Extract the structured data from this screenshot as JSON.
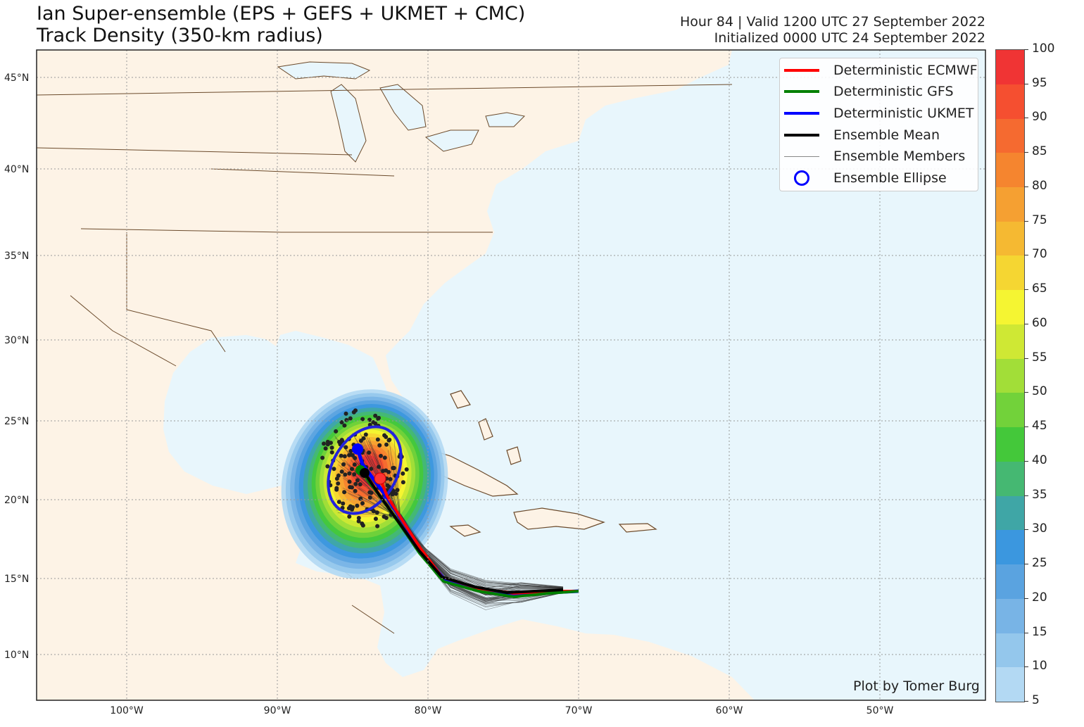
{
  "title": {
    "line1": "Ian Super-ensemble (EPS + GEFS + UKMET + CMC)",
    "line2": "Track Density (350-km radius)"
  },
  "header_right": {
    "line1": "Hour 84 | Valid 1200 UTC 27 September 2022",
    "line2": "Initialized 0000 UTC 24 September 2022"
  },
  "lat_labels": [
    "45°N",
    "40°N",
    "35°N",
    "30°N",
    "25°N",
    "20°N",
    "15°N",
    "10°N"
  ],
  "lon_labels": [
    "100°W",
    "90°W",
    "80°W",
    "70°W",
    "60°W",
    "50°W"
  ],
  "legend": [
    {
      "label": "Deterministic ECMWF",
      "color": "#ff0000",
      "icon": "line"
    },
    {
      "label": "Deterministic GFS",
      "color": "#008000",
      "icon": "line"
    },
    {
      "label": "Deterministic UKMET",
      "color": "#0000ff",
      "icon": "line"
    },
    {
      "label": "Ensemble Mean",
      "color": "#000000",
      "icon": "line"
    },
    {
      "label": "Ensemble Members",
      "color": "#888888",
      "icon": "thin-line"
    },
    {
      "label": "Ensemble Ellipse",
      "color": "#0000ff",
      "icon": "circle"
    }
  ],
  "credit": "Plot by Tomer Burg",
  "colorbar": {
    "ticks": [
      "5",
      "10",
      "15",
      "20",
      "25",
      "30",
      "35",
      "40",
      "45",
      "50",
      "55",
      "60",
      "65",
      "70",
      "75",
      "80",
      "85",
      "90",
      "95",
      "100"
    ],
    "colors": [
      "#b3d9f3",
      "#94c7ec",
      "#78b4e6",
      "#5aa3e0",
      "#3b97df",
      "#3fa6a6",
      "#45b872",
      "#44c83a",
      "#72d23a",
      "#a2de38",
      "#cfe834",
      "#f5f532",
      "#f5d632",
      "#f5b932",
      "#f5a032",
      "#f5852f",
      "#f56a30",
      "#f54f30",
      "#f03434"
    ]
  },
  "colors": {
    "land": "#fdf3e6",
    "ocean": "#e8f6fc",
    "border": "#6b4a2b"
  }
}
